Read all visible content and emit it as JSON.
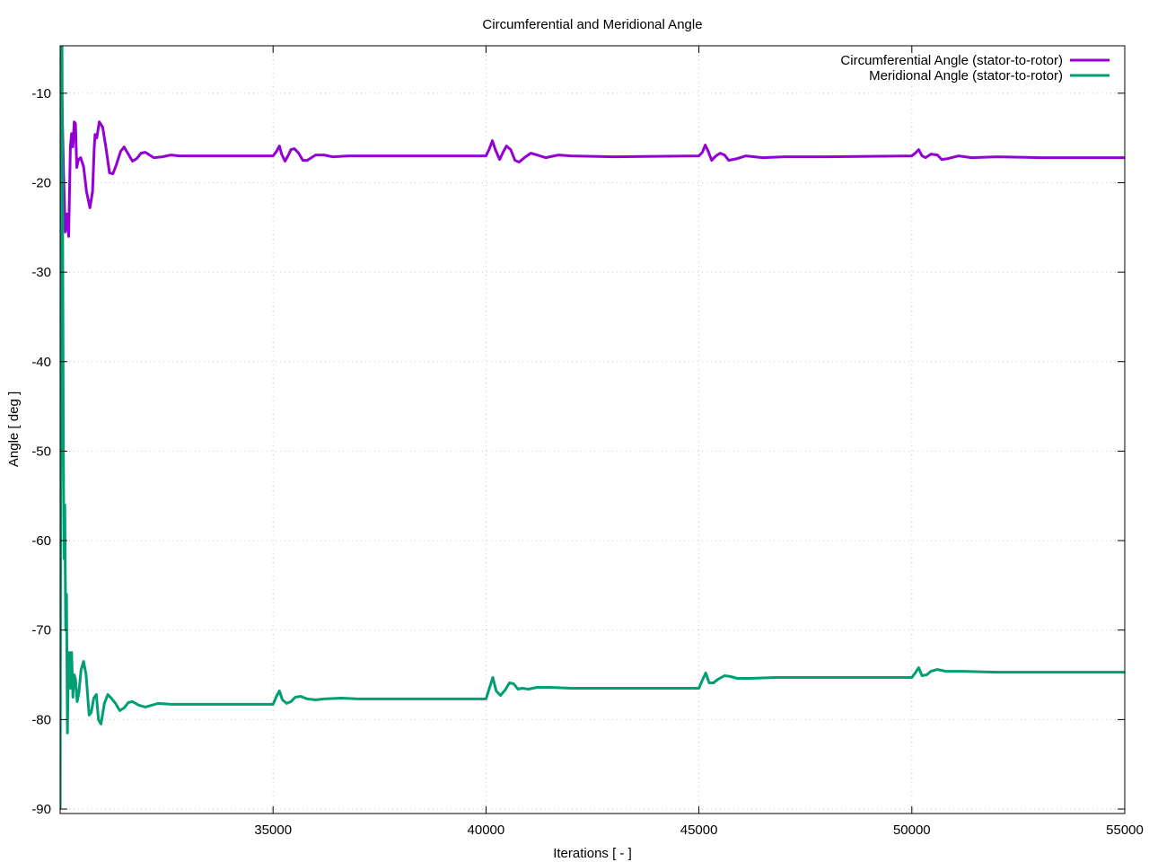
{
  "chart_data": {
    "type": "line",
    "title": "Circumferential and Meridional Angle",
    "xlabel": "Iterations [ - ]",
    "ylabel": "Angle [ deg ]",
    "xlim": [
      30000,
      55000
    ],
    "ylim": [
      -90.5,
      -4.7
    ],
    "xticks": [
      35000,
      40000,
      45000,
      50000,
      55000
    ],
    "yticks": [
      -90,
      -80,
      -70,
      -60,
      -50,
      -40,
      -30,
      -20,
      -10
    ],
    "grid": true,
    "legend_position": "top-right",
    "series": [
      {
        "name": "Circumferential Angle (stator-to-rotor)",
        "color": "#9400d3",
        "points": [
          [
            30000,
            -5
          ],
          [
            30040,
            -10
          ],
          [
            30080,
            -19
          ],
          [
            30120,
            -25.5
          ],
          [
            30160,
            -23.5
          ],
          [
            30200,
            -26
          ],
          [
            30240,
            -16
          ],
          [
            30270,
            -14.5
          ],
          [
            30300,
            -16
          ],
          [
            30330,
            -13.2
          ],
          [
            30360,
            -13.4
          ],
          [
            30390,
            -18.3
          ],
          [
            30430,
            -17.4
          ],
          [
            30480,
            -17.2
          ],
          [
            30550,
            -18.2
          ],
          [
            30620,
            -21
          ],
          [
            30700,
            -22.8
          ],
          [
            30760,
            -21
          ],
          [
            30800,
            -16
          ],
          [
            30820,
            -14.6
          ],
          [
            30860,
            -15
          ],
          [
            30920,
            -13.2
          ],
          [
            31000,
            -13.8
          ],
          [
            31080,
            -16.2
          ],
          [
            31160,
            -18.9
          ],
          [
            31240,
            -19
          ],
          [
            31320,
            -18
          ],
          [
            31420,
            -16.5
          ],
          [
            31500,
            -16
          ],
          [
            31600,
            -16.8
          ],
          [
            31700,
            -17.6
          ],
          [
            31800,
            -17.3
          ],
          [
            31900,
            -16.7
          ],
          [
            32000,
            -16.6
          ],
          [
            32100,
            -16.9
          ],
          [
            32200,
            -17.2
          ],
          [
            32400,
            -17.1
          ],
          [
            32600,
            -16.9
          ],
          [
            32800,
            -17.0
          ],
          [
            33200,
            -17.0
          ],
          [
            34000,
            -17.0
          ],
          [
            35000,
            -17.0
          ],
          [
            35080,
            -16.5
          ],
          [
            35150,
            -15.9
          ],
          [
            35200,
            -16.8
          ],
          [
            35280,
            -17.6
          ],
          [
            35350,
            -17
          ],
          [
            35420,
            -16.3
          ],
          [
            35500,
            -16.2
          ],
          [
            35600,
            -16.7
          ],
          [
            35700,
            -17.5
          ],
          [
            35800,
            -17.5
          ],
          [
            35900,
            -17.2
          ],
          [
            36000,
            -16.9
          ],
          [
            36200,
            -16.9
          ],
          [
            36400,
            -17.1
          ],
          [
            36800,
            -17.0
          ],
          [
            38000,
            -17.0
          ],
          [
            40000,
            -17.0
          ],
          [
            40080,
            -16.2
          ],
          [
            40150,
            -15.3
          ],
          [
            40220,
            -16.3
          ],
          [
            40320,
            -17.4
          ],
          [
            40400,
            -16.6
          ],
          [
            40480,
            -15.9
          ],
          [
            40580,
            -16.3
          ],
          [
            40680,
            -17.5
          ],
          [
            40780,
            -17.7
          ],
          [
            40900,
            -17.2
          ],
          [
            41050,
            -16.7
          ],
          [
            41200,
            -16.9
          ],
          [
            41400,
            -17.2
          ],
          [
            41700,
            -16.9
          ],
          [
            42000,
            -17.0
          ],
          [
            43000,
            -17.1
          ],
          [
            45000,
            -17.0
          ],
          [
            45080,
            -16.6
          ],
          [
            45150,
            -15.8
          ],
          [
            45220,
            -16.5
          ],
          [
            45300,
            -17.5
          ],
          [
            45400,
            -17
          ],
          [
            45500,
            -16.7
          ],
          [
            45600,
            -16.9
          ],
          [
            45700,
            -17.5
          ],
          [
            45900,
            -17.3
          ],
          [
            46100,
            -17.0
          ],
          [
            46500,
            -17.2
          ],
          [
            47000,
            -17.1
          ],
          [
            48000,
            -17.1
          ],
          [
            50000,
            -17.0
          ],
          [
            50080,
            -16.7
          ],
          [
            50160,
            -16.3
          ],
          [
            50240,
            -17.0
          ],
          [
            50320,
            -17.2
          ],
          [
            50450,
            -16.8
          ],
          [
            50600,
            -16.9
          ],
          [
            50700,
            -17.4
          ],
          [
            50850,
            -17.3
          ],
          [
            51100,
            -17.0
          ],
          [
            51400,
            -17.2
          ],
          [
            52000,
            -17.1
          ],
          [
            53000,
            -17.2
          ],
          [
            55000,
            -17.2
          ]
        ]
      },
      {
        "name": "Meridional Angle (stator-to-rotor)",
        "color": "#009e73",
        "points": [
          [
            30000,
            -90
          ],
          [
            30010,
            -60
          ],
          [
            30020,
            -35
          ],
          [
            30030,
            -8
          ],
          [
            30045,
            -4.7
          ],
          [
            30060,
            -25
          ],
          [
            30075,
            -50
          ],
          [
            30090,
            -62
          ],
          [
            30110,
            -56
          ],
          [
            30130,
            -70
          ],
          [
            30150,
            -66
          ],
          [
            30170,
            -81.5
          ],
          [
            30190,
            -75
          ],
          [
            30210,
            -72.5
          ],
          [
            30240,
            -76.5
          ],
          [
            30270,
            -72.5
          ],
          [
            30300,
            -77.5
          ],
          [
            30330,
            -75
          ],
          [
            30360,
            -75.5
          ],
          [
            30400,
            -78
          ],
          [
            30440,
            -77
          ],
          [
            30490,
            -74.5
          ],
          [
            30550,
            -73.5
          ],
          [
            30610,
            -75
          ],
          [
            30680,
            -79.5
          ],
          [
            30730,
            -79.2
          ],
          [
            30790,
            -77.6
          ],
          [
            30850,
            -77.2
          ],
          [
            30900,
            -80
          ],
          [
            30960,
            -80.5
          ],
          [
            31040,
            -78.2
          ],
          [
            31120,
            -77.2
          ],
          [
            31200,
            -77.6
          ],
          [
            31300,
            -78.2
          ],
          [
            31400,
            -79.0
          ],
          [
            31500,
            -78.7
          ],
          [
            31600,
            -78.1
          ],
          [
            31700,
            -78.0
          ],
          [
            31850,
            -78.4
          ],
          [
            32000,
            -78.6
          ],
          [
            32150,
            -78.4
          ],
          [
            32300,
            -78.2
          ],
          [
            32600,
            -78.3
          ],
          [
            33000,
            -78.3
          ],
          [
            34000,
            -78.3
          ],
          [
            35000,
            -78.3
          ],
          [
            35080,
            -77.4
          ],
          [
            35150,
            -76.8
          ],
          [
            35220,
            -77.8
          ],
          [
            35320,
            -78.2
          ],
          [
            35420,
            -78.0
          ],
          [
            35520,
            -77.5
          ],
          [
            35650,
            -77.4
          ],
          [
            35800,
            -77.7
          ],
          [
            36000,
            -77.8
          ],
          [
            36200,
            -77.7
          ],
          [
            36600,
            -77.6
          ],
          [
            37000,
            -77.7
          ],
          [
            38000,
            -77.7
          ],
          [
            40000,
            -77.7
          ],
          [
            40080,
            -76.5
          ],
          [
            40160,
            -75.3
          ],
          [
            40240,
            -76.8
          ],
          [
            40340,
            -77.3
          ],
          [
            40450,
            -76.7
          ],
          [
            40550,
            -75.9
          ],
          [
            40650,
            -76.0
          ],
          [
            40750,
            -76.6
          ],
          [
            40850,
            -76.5
          ],
          [
            41000,
            -76.6
          ],
          [
            41200,
            -76.4
          ],
          [
            41500,
            -76.4
          ],
          [
            42000,
            -76.5
          ],
          [
            43000,
            -76.5
          ],
          [
            45000,
            -76.5
          ],
          [
            45080,
            -75.6
          ],
          [
            45160,
            -74.8
          ],
          [
            45240,
            -75.9
          ],
          [
            45340,
            -75.9
          ],
          [
            45450,
            -75.5
          ],
          [
            45600,
            -75.1
          ],
          [
            45750,
            -75.2
          ],
          [
            45900,
            -75.4
          ],
          [
            46200,
            -75.4
          ],
          [
            46800,
            -75.3
          ],
          [
            48000,
            -75.3
          ],
          [
            50000,
            -75.3
          ],
          [
            50080,
            -74.8
          ],
          [
            50160,
            -74.2
          ],
          [
            50240,
            -75.1
          ],
          [
            50350,
            -75.0
          ],
          [
            50450,
            -74.6
          ],
          [
            50600,
            -74.4
          ],
          [
            50800,
            -74.6
          ],
          [
            51200,
            -74.6
          ],
          [
            52000,
            -74.7
          ],
          [
            53000,
            -74.7
          ],
          [
            55000,
            -74.7
          ]
        ]
      }
    ]
  }
}
